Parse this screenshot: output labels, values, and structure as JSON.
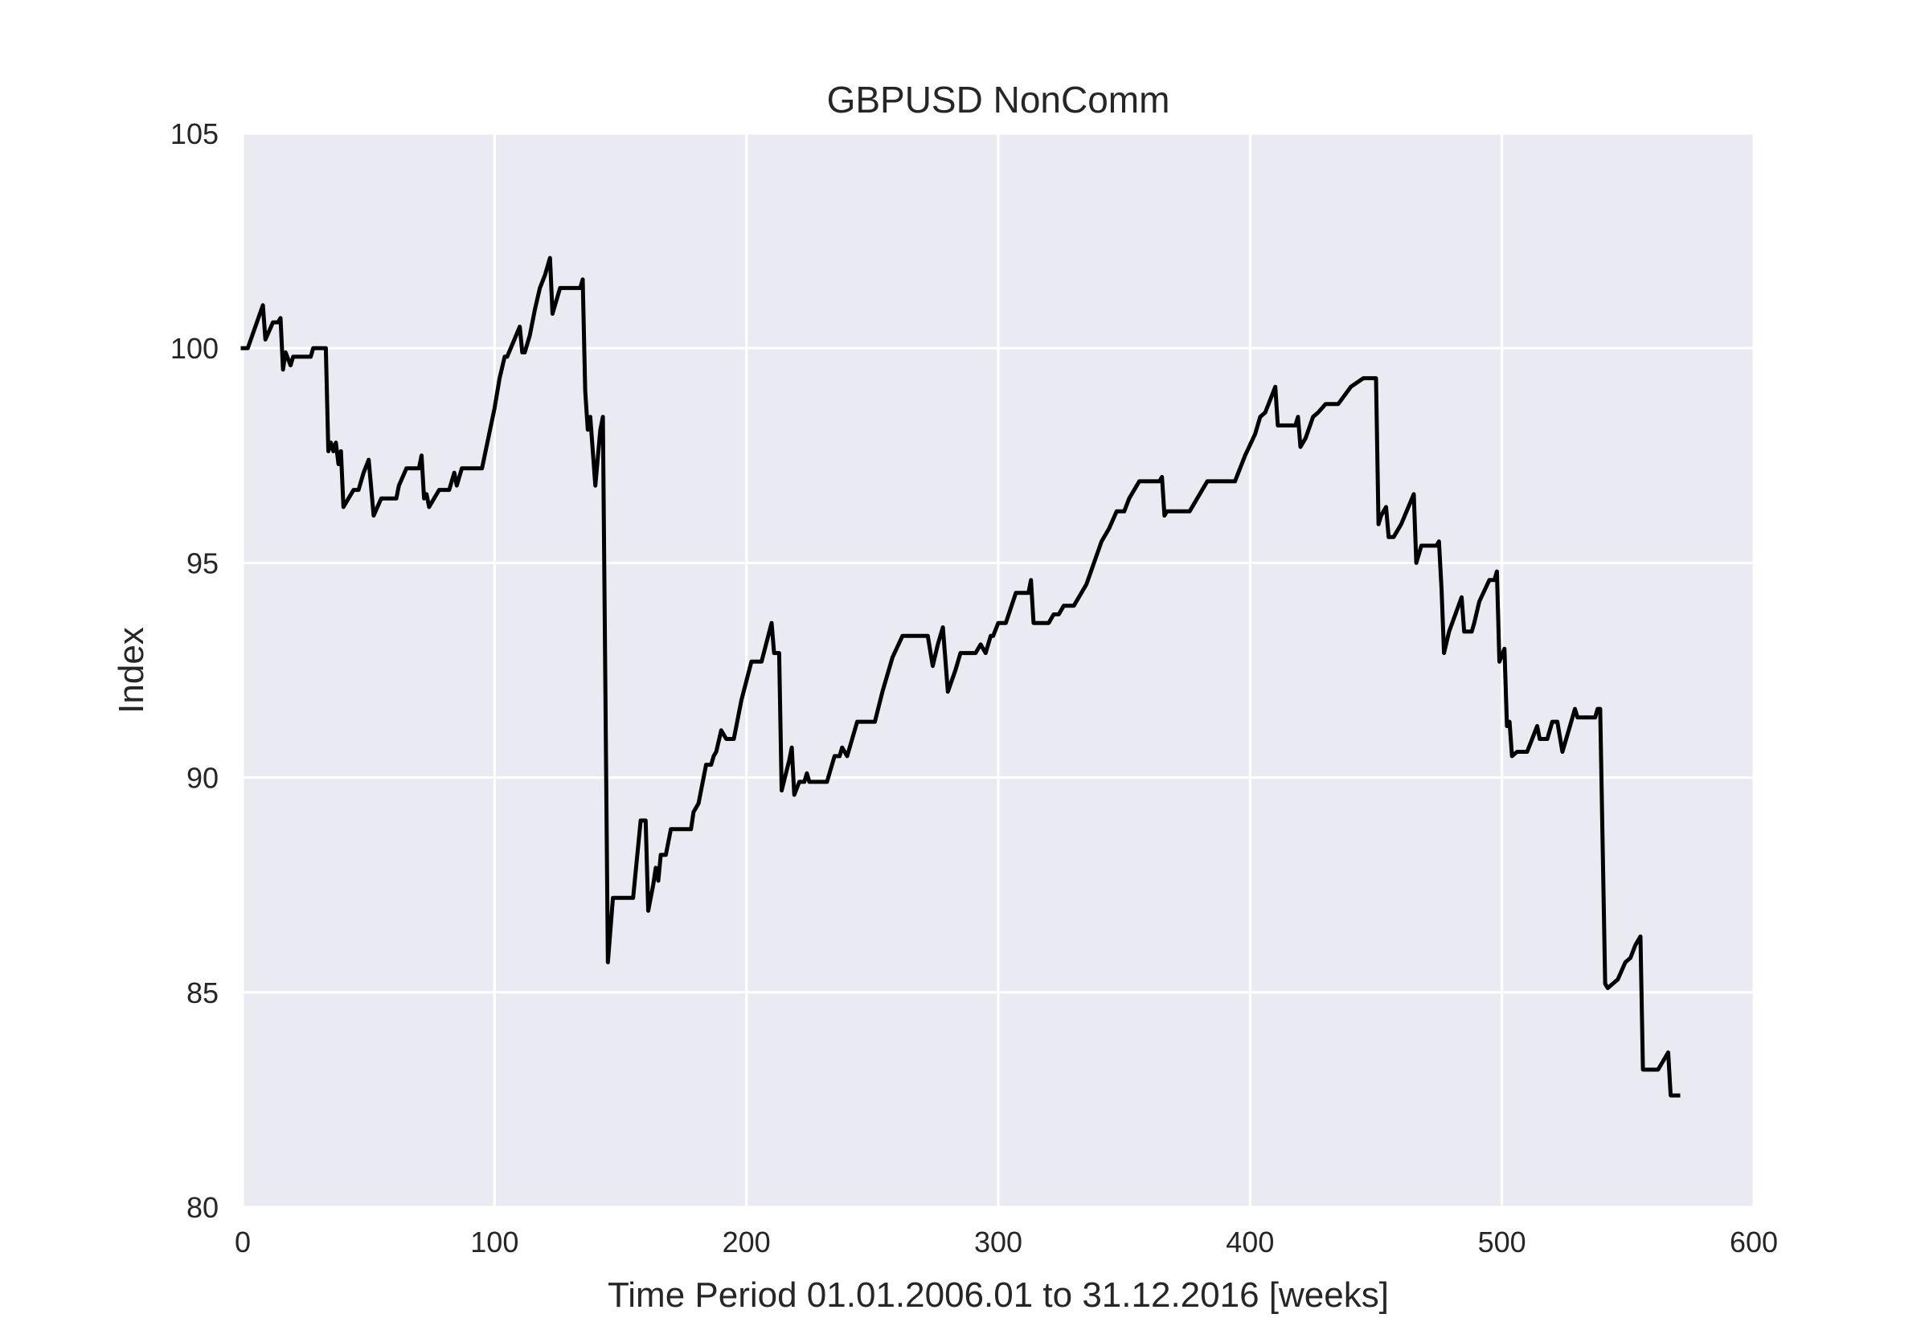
{
  "chart_data": {
    "type": "line",
    "title": "GBPUSD NonComm",
    "xlabel": "Time Period 01.01.2006.01 to 31.12.2016 [weeks]",
    "ylabel": "Index",
    "xlim": [
      0,
      600
    ],
    "ylim": [
      80,
      105
    ],
    "xticks": [
      0,
      100,
      200,
      300,
      400,
      500,
      600
    ],
    "yticks": [
      80,
      85,
      90,
      95,
      100,
      105
    ],
    "grid": true,
    "legend": "none",
    "colors": {
      "background": "#eaeaf2",
      "grid": "#ffffff",
      "line": "#000000",
      "text": "#262626"
    },
    "series": [
      {
        "values": [
          [
            0,
            100
          ],
          [
            2,
            100
          ],
          [
            8,
            101
          ],
          [
            9,
            100.2
          ],
          [
            12,
            100.6
          ],
          [
            14,
            100.6
          ],
          [
            15,
            100.7
          ],
          [
            16,
            99.5
          ],
          [
            17,
            99.9
          ],
          [
            19,
            99.6
          ],
          [
            20,
            99.8
          ],
          [
            27,
            99.8
          ],
          [
            28,
            100
          ],
          [
            33,
            100
          ],
          [
            34,
            97.6
          ],
          [
            35,
            97.8
          ],
          [
            36,
            97.6
          ],
          [
            37,
            97.8
          ],
          [
            38,
            97.3
          ],
          [
            39,
            97.6
          ],
          [
            40,
            96.3
          ],
          [
            42,
            96.5
          ],
          [
            44,
            96.7
          ],
          [
            46,
            96.7
          ],
          [
            48,
            97.1
          ],
          [
            50,
            97.4
          ],
          [
            52,
            96.1
          ],
          [
            55,
            96.5
          ],
          [
            61,
            96.5
          ],
          [
            62,
            96.8
          ],
          [
            65,
            97.2
          ],
          [
            70,
            97.2
          ],
          [
            71,
            97.5
          ],
          [
            72,
            96.5
          ],
          [
            73,
            96.6
          ],
          [
            74,
            96.3
          ],
          [
            76,
            96.5
          ],
          [
            78,
            96.7
          ],
          [
            82,
            96.7
          ],
          [
            84,
            97.1
          ],
          [
            85,
            96.8
          ],
          [
            87,
            97.2
          ],
          [
            95,
            97.2
          ],
          [
            100,
            98.6
          ],
          [
            102,
            99.3
          ],
          [
            104,
            99.8
          ],
          [
            105,
            99.8
          ],
          [
            110,
            100.5
          ],
          [
            111,
            99.9
          ],
          [
            112,
            99.9
          ],
          [
            114,
            100.3
          ],
          [
            116,
            100.9
          ],
          [
            118,
            101.4
          ],
          [
            120,
            101.7
          ],
          [
            122,
            102.1
          ],
          [
            123,
            100.8
          ],
          [
            126,
            101.4
          ],
          [
            134,
            101.4
          ],
          [
            135,
            101.6
          ],
          [
            136,
            99
          ],
          [
            137,
            98.1
          ],
          [
            138,
            98.4
          ],
          [
            140,
            96.8
          ],
          [
            142,
            98.1
          ],
          [
            143,
            98.4
          ],
          [
            145,
            85.7
          ],
          [
            147,
            87.2
          ],
          [
            155,
            87.2
          ],
          [
            158,
            89
          ],
          [
            160,
            89
          ],
          [
            161,
            86.9
          ],
          [
            163,
            87.5
          ],
          [
            164,
            87.9
          ],
          [
            165,
            87.6
          ],
          [
            166,
            88.2
          ],
          [
            168,
            88.2
          ],
          [
            170,
            88.8
          ],
          [
            178,
            88.8
          ],
          [
            179,
            89.2
          ],
          [
            181,
            89.4
          ],
          [
            184,
            90.3
          ],
          [
            186,
            90.3
          ],
          [
            187,
            90.5
          ],
          [
            188,
            90.6
          ],
          [
            190,
            91.1
          ],
          [
            192,
            90.9
          ],
          [
            195,
            90.9
          ],
          [
            198,
            91.8
          ],
          [
            202,
            92.7
          ],
          [
            206,
            92.7
          ],
          [
            210,
            93.6
          ],
          [
            211,
            92.9
          ],
          [
            213,
            92.9
          ],
          [
            214,
            89.7
          ],
          [
            217,
            90.4
          ],
          [
            218,
            90.7
          ],
          [
            219,
            89.6
          ],
          [
            221,
            89.9
          ],
          [
            223,
            89.9
          ],
          [
            224,
            90.1
          ],
          [
            225,
            89.9
          ],
          [
            232,
            89.9
          ],
          [
            235,
            90.5
          ],
          [
            237,
            90.5
          ],
          [
            238,
            90.7
          ],
          [
            240,
            90.5
          ],
          [
            244,
            91.3
          ],
          [
            251,
            91.3
          ],
          [
            254,
            92
          ],
          [
            258,
            92.8
          ],
          [
            262,
            93.3
          ],
          [
            272,
            93.3
          ],
          [
            274,
            92.6
          ],
          [
            276,
            93.1
          ],
          [
            278,
            93.5
          ],
          [
            280,
            92
          ],
          [
            283,
            92.5
          ],
          [
            285,
            92.9
          ],
          [
            291,
            92.9
          ],
          [
            293,
            93.1
          ],
          [
            295,
            92.9
          ],
          [
            297,
            93.3
          ],
          [
            298,
            93.3
          ],
          [
            300,
            93.6
          ],
          [
            303,
            93.6
          ],
          [
            307,
            94.3
          ],
          [
            312,
            94.3
          ],
          [
            313,
            94.6
          ],
          [
            314,
            93.6
          ],
          [
            320,
            93.6
          ],
          [
            322,
            93.8
          ],
          [
            324,
            93.8
          ],
          [
            326,
            94
          ],
          [
            330,
            94
          ],
          [
            335,
            94.5
          ],
          [
            338,
            95
          ],
          [
            341,
            95.5
          ],
          [
            344,
            95.8
          ],
          [
            347,
            96.2
          ],
          [
            350,
            96.2
          ],
          [
            352,
            96.5
          ],
          [
            356,
            96.9
          ],
          [
            364,
            96.9
          ],
          [
            365,
            97
          ],
          [
            366,
            96.1
          ],
          [
            367,
            96.2
          ],
          [
            376,
            96.2
          ],
          [
            383,
            96.9
          ],
          [
            394,
            96.9
          ],
          [
            398,
            97.5
          ],
          [
            402,
            98
          ],
          [
            404,
            98.4
          ],
          [
            406,
            98.5
          ],
          [
            410,
            99.1
          ],
          [
            411,
            98.2
          ],
          [
            418,
            98.2
          ],
          [
            419,
            98.4
          ],
          [
            420,
            97.7
          ],
          [
            422,
            97.9
          ],
          [
            425,
            98.4
          ],
          [
            427,
            98.5
          ],
          [
            430,
            98.7
          ],
          [
            435,
            98.7
          ],
          [
            440,
            99.1
          ],
          [
            445,
            99.3
          ],
          [
            450,
            99.3
          ],
          [
            451,
            95.9
          ],
          [
            452,
            96.1
          ],
          [
            454,
            96.3
          ],
          [
            455,
            95.6
          ],
          [
            457,
            95.6
          ],
          [
            460,
            95.9
          ],
          [
            465,
            96.6
          ],
          [
            466,
            95
          ],
          [
            468,
            95.4
          ],
          [
            474,
            95.4
          ],
          [
            475,
            95.5
          ],
          [
            476,
            94.4
          ],
          [
            477,
            92.9
          ],
          [
            479,
            93.4
          ],
          [
            484,
            94.2
          ],
          [
            485,
            93.4
          ],
          [
            488,
            93.4
          ],
          [
            489,
            93.6
          ],
          [
            491,
            94.1
          ],
          [
            495,
            94.6
          ],
          [
            497,
            94.6
          ],
          [
            498,
            94.8
          ],
          [
            499,
            92.7
          ],
          [
            501,
            93
          ],
          [
            502,
            91.2
          ],
          [
            503,
            91.3
          ],
          [
            504,
            90.5
          ],
          [
            506,
            90.6
          ],
          [
            510,
            90.6
          ],
          [
            514,
            91.2
          ],
          [
            515,
            90.9
          ],
          [
            518,
            90.9
          ],
          [
            520,
            91.3
          ],
          [
            522,
            91.3
          ],
          [
            524,
            90.6
          ],
          [
            527,
            91.2
          ],
          [
            529,
            91.6
          ],
          [
            530,
            91.4
          ],
          [
            537,
            91.4
          ],
          [
            538,
            91.6
          ],
          [
            539,
            91.6
          ],
          [
            541,
            85.2
          ],
          [
            542,
            85.1
          ],
          [
            544,
            85.2
          ],
          [
            546,
            85.3
          ],
          [
            549,
            85.7
          ],
          [
            551,
            85.8
          ],
          [
            553,
            86.1
          ],
          [
            555,
            86.3
          ],
          [
            556,
            83.2
          ],
          [
            557,
            83.2
          ],
          [
            562,
            83.2
          ],
          [
            566,
            83.6
          ],
          [
            567,
            82.6
          ],
          [
            570,
            82.6
          ]
        ]
      }
    ]
  }
}
